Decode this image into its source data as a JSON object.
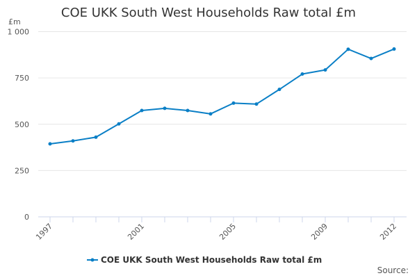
{
  "chart_data": {
    "type": "line",
    "title": "COE UKK South West Households Raw total £m",
    "ylabel": "£m",
    "xlabel": "",
    "x": [
      1997,
      1998,
      1999,
      2000,
      2001,
      2002,
      2003,
      2004,
      2005,
      2006,
      2007,
      2008,
      2009,
      2010,
      2011,
      2012
    ],
    "series": [
      {
        "name": "COE UKK South West Households Raw total £m",
        "color": "#0a7fc6",
        "values": [
          394,
          410,
          430,
          502,
          574,
          586,
          574,
          556,
          614,
          609,
          688,
          771,
          793,
          905,
          855,
          906
        ]
      }
    ],
    "ylim": [
      0,
      1000
    ],
    "yticks": [
      0,
      250,
      500,
      750,
      1000
    ],
    "ytick_labels": [
      "0",
      "250",
      "500",
      "750",
      "1 000"
    ],
    "xtick_labels": [
      "1997",
      "2001",
      "2005",
      "2009",
      "2012"
    ],
    "grid": true,
    "legend": "bottom-center"
  },
  "source_label": "Source:"
}
